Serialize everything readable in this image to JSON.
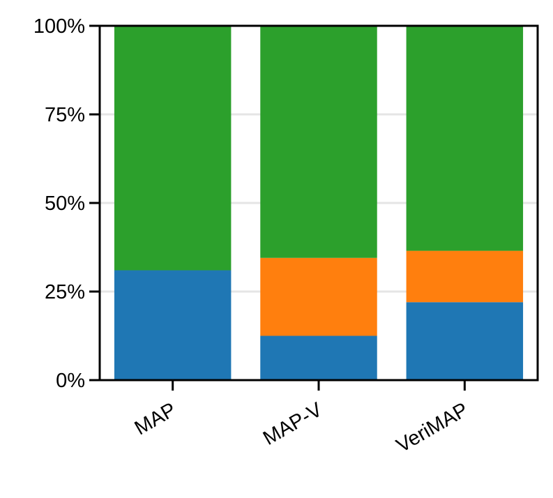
{
  "chart_data": {
    "type": "bar",
    "stacked": true,
    "categories": [
      "MAP",
      "MAP-V",
      "VeriMAP"
    ],
    "series": [
      {
        "color": "#1f77b4",
        "values": [
          31,
          12.5,
          22
        ]
      },
      {
        "color": "#ff7f0e",
        "values": [
          0,
          22,
          14.5
        ]
      },
      {
        "color": "#2ca02c",
        "values": [
          69,
          65.5,
          63.5
        ]
      }
    ],
    "title": "",
    "xlabel": "",
    "ylabel": "",
    "ylim": [
      0,
      100
    ],
    "yticks": [
      0,
      25,
      50,
      75,
      100
    ],
    "ytick_labels": [
      "0%",
      "25%",
      "50%",
      "75%",
      "100%"
    ],
    "grid": "horizontal",
    "legend": "none"
  }
}
